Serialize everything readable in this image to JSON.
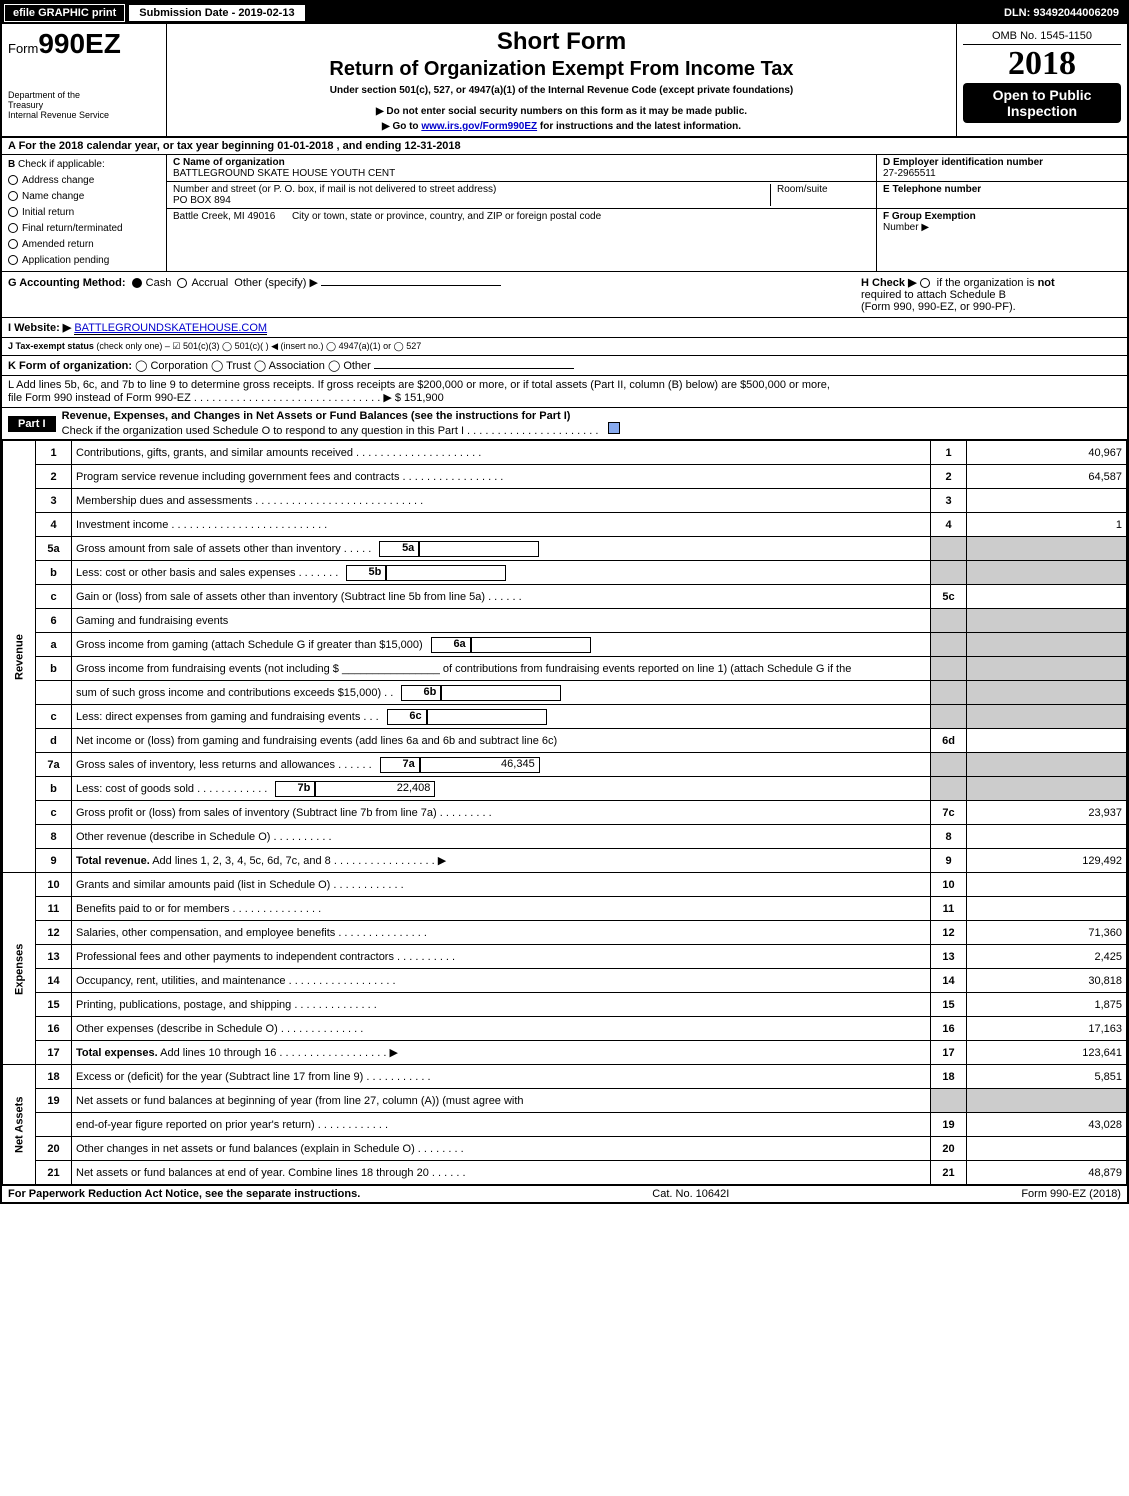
{
  "topbar": {
    "efile_label": "efile GRAPHIC print",
    "submission_label": "Submission Date - 2019-02-13",
    "dln_label": "DLN: 93492044006209"
  },
  "header": {
    "form_prefix": "Form",
    "form_number": "990EZ",
    "dept1": "Department of the",
    "dept2": "Treasury",
    "dept3": "Internal Revenue Service",
    "short_form": "Short Form",
    "return_title": "Return of Organization Exempt From Income Tax",
    "subtitle1": "Under section 501(c), 527, or 4947(a)(1) of the Internal Revenue Code (except private foundations)",
    "subtitle2": "▶ Do not enter social security numbers on this form as it may be made public.",
    "subtitle3_pre": "▶ Go to ",
    "subtitle3_link": "www.irs.gov/Form990EZ",
    "subtitle3_post": " for instructions and the latest information.",
    "omb": "OMB No. 1545-1150",
    "year": "2018",
    "open_public": "Open to Public",
    "inspection": "Inspection"
  },
  "rowA": {
    "label_pre": "A  For the 2018 calendar year, or tax year beginning ",
    "begin": "01-01-2018",
    "mid": ", and ending ",
    "end": "12-31-2018"
  },
  "secB": {
    "b_label": "B",
    "check_if": "Check if applicable:",
    "items": [
      "Address change",
      "Name change",
      "Initial return",
      "Final return/terminated",
      "Amended return",
      "Application pending"
    ],
    "c_label": "C Name of organization",
    "org_name": "BATTLEGROUND SKATE HOUSE YOUTH CENT",
    "addr_label": "Number and street (or P. O. box, if mail is not delivered to street address)",
    "addr": "PO BOX 894",
    "room_label": "Room/suite",
    "city_label": "City or town, state or province, country, and ZIP or foreign postal code",
    "city": "Battle Creek, MI  49016",
    "d_label": "D Employer identification number",
    "ein": "27-2965511",
    "e_label": "E Telephone number",
    "f_label": "F Group Exemption",
    "f_label2": "Number   ▶"
  },
  "rowG": {
    "g_label": "G Accounting Method:",
    "cash": "Cash",
    "accrual": "Accrual",
    "other": "Other (specify) ▶",
    "h_label": "H  Check ▶",
    "h_text1": "if the organization is ",
    "h_not": "not",
    "h_text2": "required to attach Schedule B",
    "h_text3": "(Form 990, 990-EZ, or 990-PF)."
  },
  "rowI": {
    "label": "I Website: ▶",
    "value": "BATTLEGROUNDSKATEHOUSE.COM"
  },
  "rowJ": {
    "label": "J Tax-exempt status",
    "text": "(check only one) –   ☑ 501(c)(3)   ◯ 501(c)(  ) ◀ (insert no.)   ◯ 4947(a)(1) or   ◯ 527"
  },
  "rowK": {
    "label": "K Form of organization:",
    "text": "◯ Corporation   ◯ Trust   ◯ Association   ◯ Other"
  },
  "rowL": {
    "text1": "L Add lines 5b, 6c, and 7b to line 9 to determine gross receipts. If gross receipts are $200,000 or more, or if total assets (Part II, column (B) below) are $500,000 or more,",
    "text2": "file Form 990 instead of Form 990-EZ  . . . . . . . . . . . . . . . . . . . . . . . . . . . . . . .  ▶ $ 151,900"
  },
  "part1": {
    "hdr": "Part I",
    "title": "Revenue, Expenses, and Changes in Net Assets or Fund Balances (see the instructions for Part I)",
    "check_text": "Check if the organization used Schedule O to respond to any question in this Part I . . . . . . . . . . . . . . . . . . . . . ."
  },
  "sections": {
    "revenue": "Revenue",
    "expenses": "Expenses",
    "netassets": "Net Assets"
  },
  "lines": [
    {
      "n": "1",
      "d": "Contributions, gifts, grants, and similar amounts received  . . . . . . . . . . . . . . . . . . . . .",
      "ln": "1",
      "amt": "40,967"
    },
    {
      "n": "2",
      "d": "Program service revenue including government fees and contracts  . . . . . . . . . . . . . . . . .",
      "ln": "2",
      "amt": "64,587"
    },
    {
      "n": "3",
      "d": "Membership dues and assessments  . . . . . . . . . . . . . . . . . . . . . . . . . . . .",
      "ln": "3",
      "amt": ""
    },
    {
      "n": "4",
      "d": "Investment income  . . . . . . . . . . . . . . . . . . . . . . . . . .",
      "ln": "4",
      "amt": "1"
    },
    {
      "n": "5a",
      "d": "Gross amount from sale of assets other than inventory  . . . . .",
      "mini": "5a",
      "minival": ""
    },
    {
      "n": "b",
      "d": "Less: cost or other basis and sales expenses  . . . . . . .",
      "mini": "5b",
      "minival": ""
    },
    {
      "n": "c",
      "d": "Gain or (loss) from sale of assets other than inventory (Subtract line 5b from line 5a)         . . . . . .",
      "ln": "5c",
      "amt": ""
    },
    {
      "n": "6",
      "d": "Gaming and fundraising events"
    },
    {
      "n": "a",
      "d": "Gross income from gaming (attach Schedule G if greater than $15,000)",
      "mini": "6a",
      "minival": ""
    },
    {
      "n": "b",
      "d": "Gross income from fundraising events (not including $ ________________ of contributions from fundraising events reported on line 1) (attach Schedule G if the"
    },
    {
      "n": "",
      "d": "sum of such gross income and contributions exceeds $15,000)       . .",
      "mini": "6b",
      "minival": ""
    },
    {
      "n": "c",
      "d": "Less: direct expenses from gaming and fundraising events        . . .",
      "mini": "6c",
      "minival": ""
    },
    {
      "n": "d",
      "d": "Net income or (loss) from gaming and fundraising events (add lines 6a and 6b and subtract line 6c)",
      "ln": "6d",
      "amt": ""
    },
    {
      "n": "7a",
      "d": "Gross sales of inventory, less returns and allowances         . . . . . .",
      "mini": "7a",
      "minival": "46,345"
    },
    {
      "n": "b",
      "d": "Less: cost of goods sold                         . . . . . . . . . . . .",
      "mini": "7b",
      "minival": "22,408"
    },
    {
      "n": "c",
      "d": "Gross profit or (loss) from sales of inventory (Subtract line 7b from line 7a)         . . . . . . . . .",
      "ln": "7c",
      "amt": "23,937"
    },
    {
      "n": "8",
      "d": "Other revenue (describe in Schedule O)                       . . . . . . . . . .",
      "ln": "8",
      "amt": ""
    },
    {
      "n": "9",
      "d": "Total revenue. Add lines 1, 2, 3, 4, 5c, 6d, 7c, and 8       . . . . . . . . . . . . . . . . .  ▶",
      "ln": "9",
      "amt": "129,492",
      "bold": true
    },
    {
      "n": "10",
      "d": "Grants and similar amounts paid (list in Schedule O)              . . . . . . . . . . . .",
      "ln": "10",
      "amt": ""
    },
    {
      "n": "11",
      "d": "Benefits paid to or for members                       . . . . . . . . . . . . . . .",
      "ln": "11",
      "amt": ""
    },
    {
      "n": "12",
      "d": "Salaries, other compensation, and employee benefits        . . . . . . . . . . . . . . .",
      "ln": "12",
      "amt": "71,360"
    },
    {
      "n": "13",
      "d": "Professional fees and other payments to independent contractors        . . . . . . . . . .",
      "ln": "13",
      "amt": "2,425"
    },
    {
      "n": "14",
      "d": "Occupancy, rent, utilities, and maintenance        . . . . . . . . . . . . . . . . . .",
      "ln": "14",
      "amt": "30,818"
    },
    {
      "n": "15",
      "d": "Printing, publications, postage, and shipping              . . . . . . . . . . . . . .",
      "ln": "15",
      "amt": "1,875"
    },
    {
      "n": "16",
      "d": "Other expenses (describe in Schedule O)                 . . . . . . . . . . . . . .",
      "ln": "16",
      "amt": "17,163"
    },
    {
      "n": "17",
      "d": "Total expenses. Add lines 10 through 16             . . . . . . . . . . . . . . . . . .  ▶",
      "ln": "17",
      "amt": "123,641",
      "bold": true
    },
    {
      "n": "18",
      "d": "Excess or (deficit) for the year (Subtract line 17 from line 9)           . . . . . . . . . . .",
      "ln": "18",
      "amt": "5,851"
    },
    {
      "n": "19",
      "d": "Net assets or fund balances at beginning of year (from line 27, column (A)) (must agree with"
    },
    {
      "n": "",
      "d": "end-of-year figure reported on prior year's return)              . . . . . . . . . . . .",
      "ln": "19",
      "amt": "43,028"
    },
    {
      "n": "20",
      "d": "Other changes in net assets or fund balances (explain in Schedule O)        . . . . . . . .",
      "ln": "20",
      "amt": ""
    },
    {
      "n": "21",
      "d": "Net assets or fund balances at end of year. Combine lines 18 through 20          . . . . . .",
      "ln": "21",
      "amt": "48,879"
    }
  ],
  "footer": {
    "left": "For Paperwork Reduction Act Notice, see the separate instructions.",
    "mid": "Cat. No. 10642I",
    "right": "Form 990-EZ (2018)"
  },
  "layout": {
    "row_spans": {
      "revenue_start": 0,
      "revenue_end": 18,
      "expenses_start": 18,
      "expenses_end": 26,
      "net_start": 26,
      "net_end": 31
    }
  }
}
